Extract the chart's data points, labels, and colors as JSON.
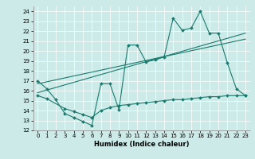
{
  "title": "",
  "xlabel": "Humidex (Indice chaleur)",
  "bg_color": "#cceae7",
  "line_color": "#1a7a6e",
  "xlim": [
    -0.5,
    23.5
  ],
  "ylim": [
    12,
    24.5
  ],
  "xticks": [
    0,
    1,
    2,
    3,
    4,
    5,
    6,
    7,
    8,
    9,
    10,
    11,
    12,
    13,
    14,
    15,
    16,
    17,
    18,
    19,
    20,
    21,
    22,
    23
  ],
  "yticks": [
    12,
    13,
    14,
    15,
    16,
    17,
    18,
    19,
    20,
    21,
    22,
    23,
    24
  ],
  "series1_x": [
    0,
    1,
    2,
    3,
    4,
    5,
    6,
    7,
    8,
    9,
    10,
    11,
    12,
    13,
    14,
    15,
    16,
    17,
    18,
    19,
    20,
    21,
    22,
    23
  ],
  "series1_y": [
    17.0,
    16.2,
    15.1,
    13.7,
    13.3,
    12.9,
    12.5,
    16.7,
    16.7,
    14.1,
    20.6,
    20.6,
    18.9,
    19.1,
    19.4,
    23.3,
    22.1,
    22.3,
    24.0,
    21.8,
    21.8,
    18.8,
    16.2,
    15.5
  ],
  "series2_x": [
    0,
    1,
    3,
    4,
    5,
    6,
    7,
    8,
    9,
    10,
    11,
    12,
    13,
    14,
    15,
    16,
    17,
    18,
    19,
    20,
    21,
    22,
    23
  ],
  "series2_y": [
    15.5,
    15.2,
    14.2,
    13.9,
    13.6,
    13.3,
    14.0,
    14.3,
    14.5,
    14.6,
    14.7,
    14.8,
    14.9,
    15.0,
    15.1,
    15.1,
    15.2,
    15.3,
    15.4,
    15.4,
    15.5,
    15.5,
    15.5
  ],
  "trend1_x": [
    0,
    23
  ],
  "trend1_y": [
    15.8,
    21.8
  ],
  "trend2_x": [
    0,
    23
  ],
  "trend2_y": [
    16.7,
    21.2
  ],
  "grid_color": "#ffffff",
  "tick_fontsize": 5,
  "xlabel_fontsize": 6
}
